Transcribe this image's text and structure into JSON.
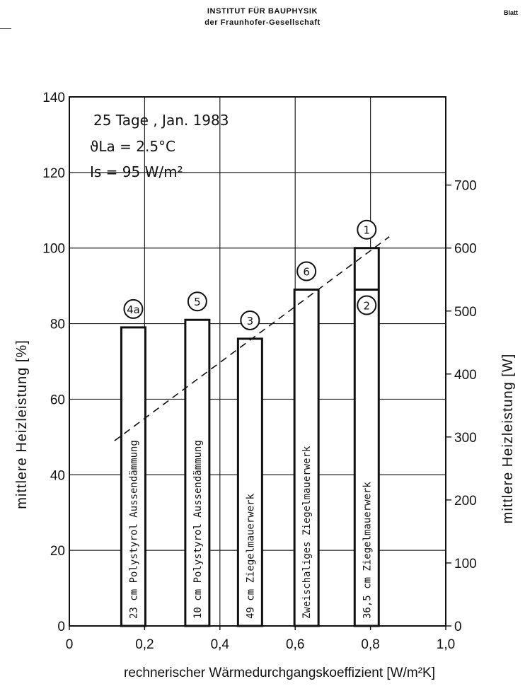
{
  "header": {
    "line1": "INSTITUT FÜR BAUPHYSIK",
    "line2": "der Fraunhofer-Gesellschaft",
    "blatt": "Blatt"
  },
  "chart_data": {
    "type": "bar",
    "annotation": [
      "25 Tage , Jan. 1983",
      "ϑLa = 2.5°C",
      "Is = 95 W/m²"
    ],
    "xlabel": "rechnerischer Wärmedurchgangskoeffizient [W/m²K]",
    "ylabel_left": "mittlere Heizleistung [%]",
    "ylabel_right": "mittlere Heizleistung [W]",
    "xlim": [
      0,
      1.0
    ],
    "ylim_left": [
      0,
      140
    ],
    "ylim_right": [
      0,
      840
    ],
    "x_ticks": [
      "0",
      "0,2",
      "0,4",
      "0,6",
      "0,8",
      "1,0"
    ],
    "y_ticks_left": [
      0,
      20,
      40,
      60,
      80,
      100,
      120,
      140
    ],
    "y_ticks_right": [
      0,
      100,
      200,
      300,
      400,
      500,
      600,
      700
    ],
    "grid": true,
    "bars": [
      {
        "id": "4a",
        "x": 0.17,
        "value": 79,
        "label": "23 cm Polystyrol Aussendämmung"
      },
      {
        "id": "5",
        "x": 0.34,
        "value": 81,
        "label": "10 cm Polystyrol Aussendämmung"
      },
      {
        "id": "3",
        "x": 0.48,
        "value": 76,
        "label": "49 cm Ziegelmauerwerk"
      },
      {
        "id": "6",
        "x": 0.63,
        "value": 89,
        "label": "Zweischaliges Ziegelmauerwerk"
      },
      {
        "id": "1",
        "x": 0.79,
        "value": 100,
        "label": "36,5 cm Ziegelmauerwerk"
      }
    ],
    "marker_2": {
      "id": "2",
      "x": 0.79,
      "value": 89
    },
    "trend_line": {
      "style": "dashed",
      "from": [
        0.12,
        49
      ],
      "to": [
        0.85,
        103
      ]
    }
  }
}
